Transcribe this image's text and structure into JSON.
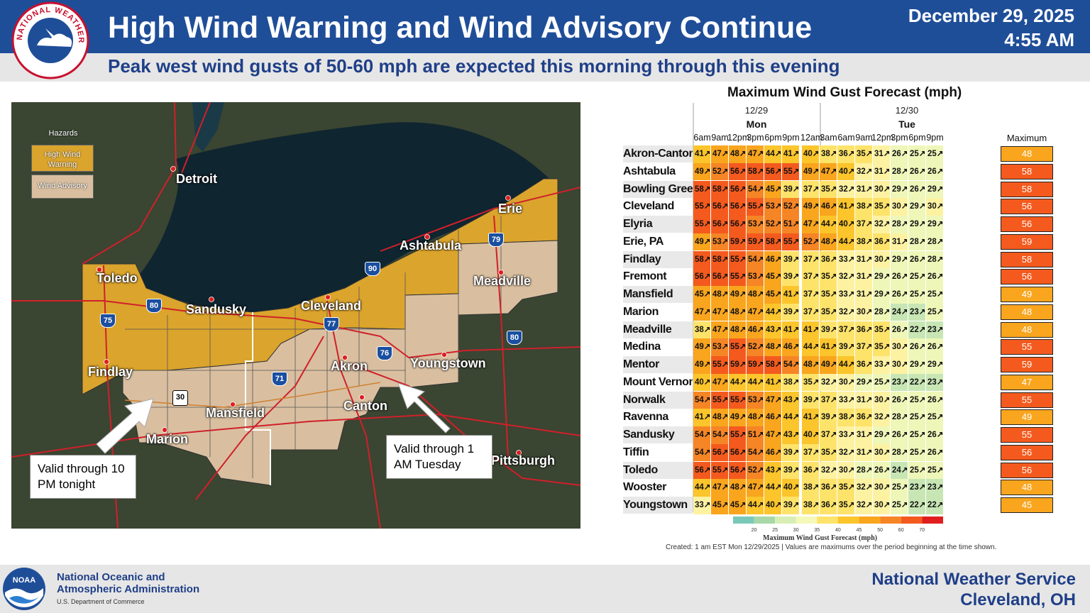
{
  "header": {
    "title": "High Wind Warning and Wind Advisory Continue",
    "date": "December 29, 2025",
    "time": "4:55 AM",
    "subtitle": "Peak west wind gusts of 50-60 mph are expected this morning through this evening",
    "logo_text": "NATIONAL WEATHER SERVICE"
  },
  "map": {
    "legend": {
      "title": "Hazards",
      "items": [
        {
          "label": "High Wind Warning",
          "color": "#dba42c"
        },
        {
          "label": "Wind Advisory",
          "color": "#d9bfa0"
        }
      ]
    },
    "cities": [
      "Detroit",
      "Erie",
      "Ashtabula",
      "Toledo",
      "Meadville",
      "Sandusky",
      "Cleveland",
      "Findlay",
      "Akron",
      "Youngstown",
      "Mansfield",
      "Canton",
      "Marion",
      "Pittsburgh"
    ],
    "highways": [
      "75",
      "80",
      "90",
      "79",
      "77",
      "80",
      "76",
      "71",
      "30"
    ],
    "callouts": {
      "west": "Valid through 10 PM tonight",
      "east": "Valid through 1 AM Tuesday"
    }
  },
  "table": {
    "title": "Maximum Wind Gust Forecast (mph)",
    "days": [
      {
        "date": "12/29",
        "name": "Mon"
      },
      {
        "date": "12/30",
        "name": "Tue"
      }
    ],
    "times": [
      "6am",
      "9am",
      "12pm",
      "3pm",
      "6pm",
      "9pm",
      "12am",
      "3am",
      "6am",
      "9am",
      "12pm",
      "3pm",
      "6pm",
      "9pm"
    ],
    "max_label": "Maximum",
    "rows": [
      {
        "loc": "Akron-Canton",
        "v": [
          41,
          47,
          48,
          47,
          44,
          41,
          40,
          38,
          36,
          35,
          31,
          26,
          25,
          25
        ],
        "max": 48
      },
      {
        "loc": "Ashtabula",
        "v": [
          49,
          52,
          56,
          58,
          56,
          55,
          49,
          47,
          40,
          32,
          31,
          28,
          26,
          26
        ],
        "max": 58
      },
      {
        "loc": "Bowling Green",
        "v": [
          58,
          58,
          56,
          54,
          45,
          39,
          37,
          35,
          32,
          31,
          30,
          29,
          26,
          29
        ],
        "max": 58
      },
      {
        "loc": "Cleveland",
        "v": [
          55,
          56,
          56,
          55,
          53,
          52,
          49,
          46,
          41,
          38,
          35,
          30,
          29,
          30
        ],
        "max": 56
      },
      {
        "loc": "Elyria",
        "v": [
          55,
          56,
          56,
          53,
          52,
          51,
          47,
          44,
          40,
          37,
          32,
          28,
          29,
          29
        ],
        "max": 56
      },
      {
        "loc": "Erie, PA",
        "v": [
          49,
          53,
          59,
          59,
          58,
          55,
          52,
          48,
          44,
          38,
          36,
          31,
          28,
          28
        ],
        "max": 59
      },
      {
        "loc": "Findlay",
        "v": [
          58,
          58,
          55,
          54,
          46,
          39,
          37,
          36,
          33,
          31,
          30,
          29,
          26,
          28
        ],
        "max": 58
      },
      {
        "loc": "Fremont",
        "v": [
          56,
          56,
          55,
          53,
          45,
          39,
          37,
          35,
          32,
          31,
          29,
          26,
          25,
          26
        ],
        "max": 56
      },
      {
        "loc": "Mansfield",
        "v": [
          45,
          48,
          49,
          48,
          45,
          41,
          37,
          35,
          33,
          31,
          29,
          26,
          25,
          25
        ],
        "max": 49
      },
      {
        "loc": "Marion",
        "v": [
          47,
          47,
          48,
          47,
          44,
          39,
          37,
          35,
          32,
          30,
          28,
          24,
          23,
          25
        ],
        "max": 48
      },
      {
        "loc": "Meadville",
        "v": [
          38,
          47,
          48,
          46,
          43,
          41,
          41,
          39,
          37,
          36,
          35,
          26,
          22,
          23
        ],
        "max": 48
      },
      {
        "loc": "Medina",
        "v": [
          49,
          53,
          55,
          52,
          48,
          46,
          44,
          41,
          39,
          37,
          35,
          30,
          26,
          26
        ],
        "max": 55
      },
      {
        "loc": "Mentor",
        "v": [
          49,
          55,
          59,
          59,
          58,
          54,
          48,
          49,
          44,
          36,
          33,
          30,
          29,
          29
        ],
        "max": 59
      },
      {
        "loc": "Mount Vernon",
        "v": [
          40,
          47,
          44,
          44,
          41,
          38,
          35,
          32,
          30,
          29,
          25,
          23,
          22,
          23
        ],
        "max": 47
      },
      {
        "loc": "Norwalk",
        "v": [
          54,
          55,
          55,
          53,
          47,
          43,
          39,
          37,
          33,
          31,
          30,
          26,
          25,
          26
        ],
        "max": 55
      },
      {
        "loc": "Ravenna",
        "v": [
          41,
          48,
          49,
          48,
          46,
          44,
          41,
          39,
          38,
          36,
          32,
          28,
          25,
          25
        ],
        "max": 49
      },
      {
        "loc": "Sandusky",
        "v": [
          54,
          54,
          55,
          51,
          47,
          43,
          40,
          37,
          33,
          31,
          29,
          26,
          25,
          26
        ],
        "max": 55
      },
      {
        "loc": "Tiffin",
        "v": [
          54,
          56,
          56,
          54,
          46,
          39,
          37,
          35,
          32,
          31,
          30,
          28,
          25,
          26
        ],
        "max": 56
      },
      {
        "loc": "Toledo",
        "v": [
          56,
          55,
          56,
          52,
          43,
          39,
          36,
          32,
          30,
          28,
          26,
          24,
          25,
          25
        ],
        "max": 56
      },
      {
        "loc": "Wooster",
        "v": [
          44,
          47,
          48,
          47,
          44,
          40,
          38,
          36,
          35,
          32,
          30,
          25,
          23,
          23
        ],
        "max": 48
      },
      {
        "loc": "Youngstown",
        "v": [
          33,
          45,
          45,
          44,
          40,
          39,
          38,
          36,
          35,
          32,
          30,
          25,
          22,
          22
        ],
        "max": 45
      }
    ],
    "scale": {
      "ticks": [
        "20",
        "25",
        "30",
        "35",
        "40",
        "45",
        "50",
        "60",
        "70"
      ],
      "label": "Maximum Wind Gust Forecast (mph)"
    },
    "created": "Created: 1 am EST Mon 12/29/2025  |  Values are maximums over the period beginning at the time shown."
  },
  "footer": {
    "agency_line1": "National Oceanic and",
    "agency_line2": "Atmospheric Administration",
    "dept": "U.S. Department of Commerce",
    "office_line1": "National Weather Service",
    "office_line2": "Cleveland, OH",
    "noaa_logo_text": "NOAA"
  }
}
